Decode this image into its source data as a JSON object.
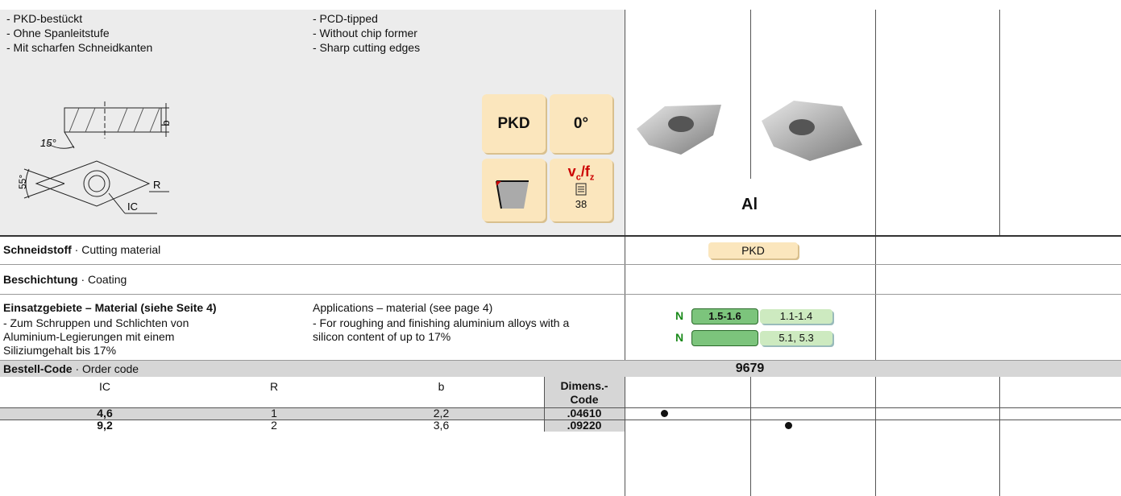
{
  "description": {
    "de": [
      "- PKD-bestückt",
      "- Ohne Spanleitstufe",
      "- Mit scharfen Schneidkanten"
    ],
    "en": [
      "- PCD-tipped",
      "- Without chip former",
      "- Sharp cutting edges"
    ]
  },
  "diagram": {
    "angle_side": "15°",
    "b": "b",
    "angle_top": "55°",
    "R": "R",
    "IC": "IC"
  },
  "icons": {
    "material": "PKD",
    "angle": "0°",
    "vc_fz": [
      "v",
      "c",
      "/f",
      "z"
    ],
    "page": "38"
  },
  "product_label": "Al",
  "cutting_material": {
    "label_de": "Schneidstoff",
    "label_en": "· Cutting material",
    "value": "PKD"
  },
  "coating": {
    "label_de": "Beschichtung",
    "label_en": "· Coating"
  },
  "applications": {
    "title_de": "Einsatzgebiete – Material (siehe Seite 4)",
    "title_en": "Applications – material (see page 4)",
    "text_de": "- Zum Schruppen und Schlichten von Aluminium-Legierungen mit einem Siliziumgehalt bis 17%",
    "text_en": "- For roughing and finishing aluminium alloys with a silicon content of up to 17%",
    "badges": [
      {
        "group": "N",
        "primary": "1.5-1.6",
        "secondary": "1.1-1.4"
      },
      {
        "group": "N",
        "secondary": "5.1, 5.3"
      }
    ]
  },
  "order_code": {
    "label_de": "Bestell-Code",
    "label_en": "· Order code",
    "value": "9679"
  },
  "table": {
    "headers": [
      "IC",
      "R",
      "b",
      "Dimens.-Code"
    ],
    "rows": [
      [
        "4,6",
        "1",
        "2,2",
        ".04610"
      ],
      [
        "9,2",
        "2",
        "3,6",
        ".09220"
      ]
    ]
  }
}
